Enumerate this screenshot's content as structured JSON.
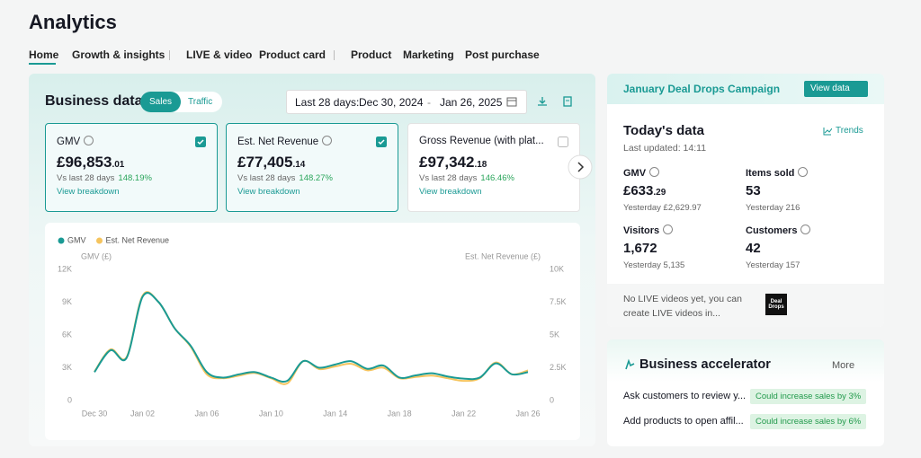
{
  "header": {
    "title": "Analytics"
  },
  "tabs": [
    "Home",
    "Growth & insights",
    "LIVE & video",
    "Product card",
    "Product",
    "Marketing",
    "Post purchase"
  ],
  "business_data": {
    "title": "Business data",
    "toggle": [
      "Sales",
      "Traffic"
    ],
    "date_label": "Last 28 days:",
    "date_start": "Dec 30, 2024",
    "date_sep": "-",
    "date_end": "Jan 26, 2025",
    "cards": [
      {
        "name": "GMV",
        "value": "£96,853",
        "decimals": ".01",
        "compare": "Vs last 28 days",
        "change": "148.19%",
        "link": "View breakdown"
      },
      {
        "name": "Est. Net Revenue",
        "value": "£77,405",
        "decimals": ".14",
        "compare": "Vs last 28 days",
        "change": "148.27%",
        "link": "View breakdown"
      },
      {
        "name": "Gross Revenue (with plat...",
        "value": "£97,342",
        "decimals": ".18",
        "compare": "Vs last 28 days",
        "change": "146.46%",
        "link": "View breakdown"
      }
    ]
  },
  "chart_data": {
    "type": "line",
    "legend": "top-left",
    "grid": false,
    "categories": [
      "Dec 30",
      null,
      null,
      "Jan 02",
      null,
      null,
      null,
      "Jan 06",
      null,
      null,
      null,
      "Jan 10",
      null,
      null,
      null,
      "Jan 14",
      null,
      null,
      null,
      "Jan 18",
      null,
      null,
      null,
      "Jan 22",
      null,
      null,
      null,
      "Jan 26"
    ],
    "series": [
      {
        "name": "GMV",
        "color": "#1a9a94",
        "values": [
          2600,
          4600,
          3900,
          9500,
          9000,
          6600,
          5000,
          2600,
          2100,
          2400,
          2600,
          2100,
          1800,
          3600,
          3000,
          3300,
          3600,
          2900,
          3200,
          2100,
          2300,
          2500,
          2200,
          2000,
          2100,
          3400,
          2400,
          2600
        ]
      },
      {
        "name": "Est. Net Revenue",
        "color": "#f5c45e",
        "axis": "y2",
        "values": [
          2200,
          3900,
          3300,
          8000,
          7500,
          5500,
          4100,
          2000,
          1700,
          1900,
          2100,
          1700,
          1300,
          3000,
          2400,
          2600,
          2800,
          2300,
          2500,
          1700,
          1800,
          1900,
          1700,
          1500,
          1700,
          2900,
          2000,
          2300
        ]
      }
    ],
    "ylabel": "GMV (£)",
    "y2label": "Est. Net Revenue (£)",
    "ylim": [
      0,
      12000
    ],
    "yticks": [
      0,
      {
        "value": 3000,
        "label": "3K"
      },
      {
        "value": 6000,
        "label": "6K"
      },
      {
        "value": 9000,
        "label": "9K"
      },
      {
        "value": 12000,
        "label": "12K"
      }
    ],
    "y2lim": [
      0,
      10000
    ],
    "y2ticks": [
      0,
      {
        "value": 2500,
        "label": "2.5K"
      },
      {
        "value": 5000,
        "label": "5K"
      },
      {
        "value": 7500,
        "label": "7.5K"
      },
      {
        "value": 10000,
        "label": "10K"
      }
    ]
  },
  "campaign": {
    "title": "January Deal Drops Campaign",
    "button": "View data"
  },
  "today": {
    "title": "Today's data",
    "updated": "Last updated: 14:11",
    "trends": "Trends",
    "stats": [
      {
        "name": "GMV",
        "value": "£633",
        "decimals": ".29",
        "yesterday": "Yesterday £2,629.97"
      },
      {
        "name": "Items sold",
        "value": "53",
        "yesterday": "Yesterday 216"
      },
      {
        "name": "Visitors",
        "value": "1,672",
        "yesterday": "Yesterday 5,135"
      },
      {
        "name": "Customers",
        "value": "42",
        "yesterday": "Yesterday 157"
      }
    ],
    "live_note": "No LIVE videos yet, you can create LIVE videos in...",
    "thumb": "Deal Drops"
  },
  "accelerator": {
    "title": "Business accelerator",
    "more": "More",
    "rows": [
      {
        "text": "Ask customers to review y...",
        "badge": "Could increase sales by 3%"
      },
      {
        "text": "Add products to open affil...",
        "badge": "Could increase sales by 6%"
      }
    ]
  }
}
